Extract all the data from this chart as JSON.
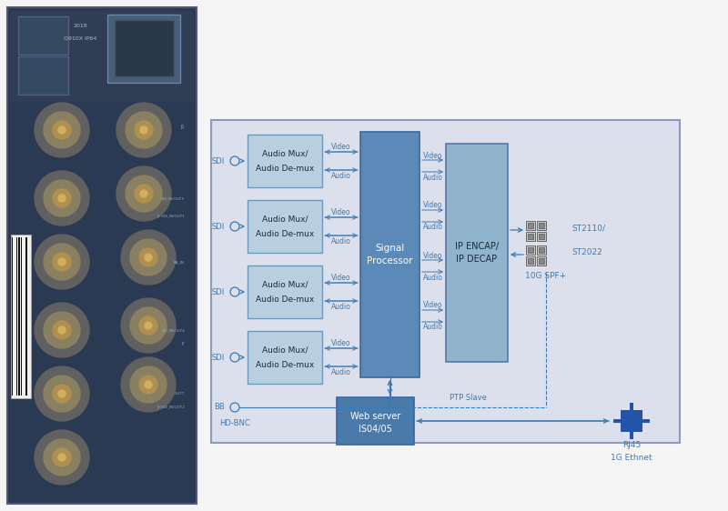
{
  "bg_color": "#f5f5f5",
  "diagram_bg": "#dde0ee",
  "diagram_border": "#aab0cc",
  "block_mux_bg": "#b8cfe0",
  "block_mux_border": "#7098b8",
  "block_signal_bg": "#5b8ab8",
  "block_signal_border": "#3a6898",
  "block_ip_bg": "#90b4cc",
  "block_ip_border": "#5577aa",
  "block_web_bg": "#4a7aaa",
  "block_web_border": "#3366aa",
  "arrow_color": "#3a7ab8",
  "label_color": "#3a7ab8",
  "text_dark": "#1a2a3a",
  "signal_proc_label": "Signal\nProcessor",
  "ip_encap_label": "IP ENCAP/\nIP DECAP",
  "web_server_label": "Web server\nIS04/05",
  "ptp_label": "PTP Slave",
  "sfp_label": "10G SPF+",
  "rj45_label": "RJ45",
  "ethernet_label": "1G Ethnet",
  "st2110_label": "ST2110/\nST2022"
}
